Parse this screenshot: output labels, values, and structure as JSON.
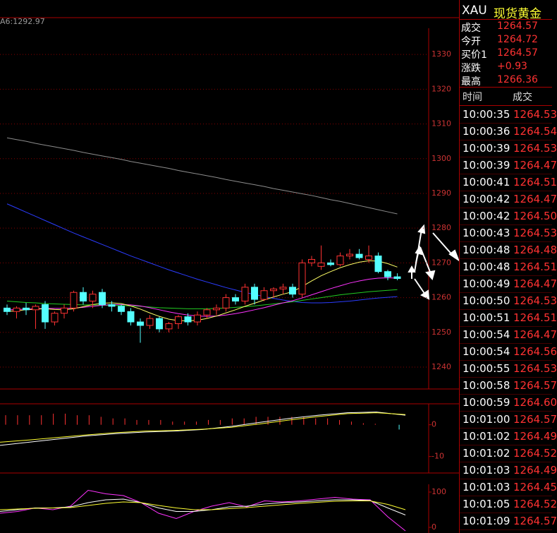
{
  "chart_data": [
    {
      "type": "candlestick",
      "annotation": "A6:1292.97",
      "ylim": [
        1233.7,
        1340.6
      ],
      "yticks": [
        1240,
        1250,
        1260,
        1270,
        1280,
        1290,
        1300,
        1310,
        1320,
        1330
      ],
      "grid": true,
      "up_color": "#ff3232",
      "down_color": "#54ffff",
      "open": [
        1257,
        1256,
        1257,
        1256.5,
        1258,
        1253,
        1255.5,
        1257,
        1261.5,
        1259,
        1261.5,
        1258,
        1257.5,
        1256,
        1253,
        1252,
        1254,
        1251,
        1252.5,
        1254.5,
        1253,
        1255,
        1256.5,
        1257,
        1260,
        1259,
        1263,
        1259.5,
        1262,
        1262.5,
        1263,
        1261,
        1270,
        1269,
        1270,
        1269.5,
        1272,
        1272.5,
        1271,
        1272,
        1267.5,
        1266
      ],
      "high": [
        1258,
        1257.5,
        1258.5,
        1258,
        1259,
        1256,
        1258,
        1262,
        1263,
        1262,
        1262.5,
        1259,
        1258,
        1257,
        1254,
        1255,
        1254.5,
        1253,
        1255,
        1255.5,
        1256,
        1257,
        1258,
        1261,
        1261,
        1264,
        1264,
        1263,
        1263,
        1264,
        1264,
        1271,
        1272,
        1275,
        1271,
        1273,
        1274,
        1274,
        1275,
        1273,
        1268,
        1267
      ],
      "low": [
        1255,
        1254,
        1255,
        1251,
        1251,
        1252,
        1254,
        1256,
        1258,
        1257,
        1257,
        1256,
        1255,
        1252,
        1247,
        1251,
        1250,
        1250,
        1251,
        1252,
        1252,
        1254,
        1255,
        1256,
        1258,
        1258,
        1258,
        1259,
        1260,
        1261,
        1260,
        1260,
        1269,
        1268,
        1269,
        1269,
        1271,
        1271,
        1270,
        1267,
        1265,
        1265
      ],
      "close": [
        1256,
        1257,
        1256.5,
        1257.5,
        1253,
        1255.5,
        1257,
        1261.5,
        1259,
        1261,
        1258,
        1257.5,
        1256,
        1253,
        1252,
        1254,
        1251,
        1252.5,
        1254.5,
        1253,
        1255,
        1256.5,
        1257,
        1260,
        1259,
        1263,
        1259.5,
        1262,
        1262.5,
        1263,
        1261,
        1270,
        1271,
        1270,
        1269.5,
        1272,
        1272.5,
        1271.5,
        1272,
        1267.5,
        1266,
        1265.5
      ],
      "lines": [
        {
          "color": "#8c8c8c",
          "values": [
            1306,
            1305.5,
            1305,
            1304.4,
            1303.9,
            1303.4,
            1302.9,
            1302.4,
            1301.8,
            1301.3,
            1300.8,
            1300.3,
            1299.8,
            1299.2,
            1298.7,
            1298.2,
            1297.7,
            1297.2,
            1296.6,
            1296.1,
            1295.6,
            1295.1,
            1294.6,
            1294,
            1293.5,
            1293,
            1292.5,
            1292,
            1291.4,
            1290.9,
            1290.4,
            1289.9,
            1289.4,
            1288.8,
            1288.2,
            1287.7,
            1287.1,
            1286.5,
            1285.9,
            1285.3,
            1284.7,
            1284.1
          ]
        },
        {
          "color": "#2b3cff",
          "values": [
            1287,
            1285.8,
            1284.6,
            1283.4,
            1282.2,
            1281,
            1279.8,
            1278.6,
            1277.5,
            1276.4,
            1275.3,
            1274.2,
            1273.1,
            1272,
            1271,
            1270,
            1269,
            1268,
            1267.1,
            1266.2,
            1265.3,
            1264.5,
            1263.7,
            1262.9,
            1262.2,
            1261.5,
            1260.9,
            1260.3,
            1259.8,
            1259.3,
            1258.9,
            1258.6,
            1258.5,
            1258.5,
            1258.6,
            1258.8,
            1259,
            1259.3,
            1259.6,
            1259.9,
            1260.1,
            1260.3
          ]
        },
        {
          "color": "#22cc22",
          "values": [
            1259,
            1258.8,
            1258.6,
            1258.5,
            1258.3,
            1258.2,
            1258.1,
            1258,
            1257.9,
            1257.9,
            1257.8,
            1257.8,
            1257.7,
            1257.6,
            1257.5,
            1257.3,
            1257.1,
            1257,
            1256.9,
            1256.8,
            1256.8,
            1256.8,
            1256.9,
            1257,
            1257.2,
            1257.4,
            1257.6,
            1257.9,
            1258.2,
            1258.5,
            1258.8,
            1259.2,
            1259.6,
            1260,
            1260.4,
            1260.8,
            1261.1,
            1261.4,
            1261.7,
            1261.9,
            1262.1,
            1262.3
          ]
        },
        {
          "color": "#ff33ff",
          "values": [
            1256.5,
            1256.6,
            1256.7,
            1256.8,
            1256.9,
            1256.9,
            1256.9,
            1257,
            1257.2,
            1257.5,
            1257.8,
            1258,
            1258,
            1257.9,
            1257.6,
            1257.1,
            1256.5,
            1255.9,
            1255.4,
            1255,
            1254.7,
            1254.6,
            1254.7,
            1255,
            1255.4,
            1255.9,
            1256.5,
            1257.1,
            1257.8,
            1258.5,
            1259.1,
            1259.9,
            1260.8,
            1261.7,
            1262.6,
            1263.4,
            1264.2,
            1264.8,
            1265.3,
            1265.6,
            1265.7,
            1265.6
          ]
        },
        {
          "color": "#ffff66",
          "values": [
            1256,
            1256.2,
            1256.5,
            1256.7,
            1256.8,
            1256.6,
            1256.5,
            1256.8,
            1257.4,
            1258,
            1258.4,
            1258.5,
            1258.3,
            1257.6,
            1256.7,
            1255.6,
            1254.6,
            1253.8,
            1253.4,
            1253.3,
            1253.5,
            1254,
            1254.7,
            1255.6,
            1256.5,
            1257.5,
            1258.4,
            1259.3,
            1260.2,
            1261,
            1261.7,
            1263.2,
            1264.8,
            1266.3,
            1267.5,
            1268.6,
            1269.5,
            1270.2,
            1270.6,
            1270.5,
            1269.8,
            1268.8
          ]
        }
      ]
    },
    {
      "type": "macd",
      "ylim": [
        -15.2,
        6.6
      ],
      "yticks": [
        -10,
        0
      ],
      "bar_color": "#ff3232",
      "bars": [
        3,
        3,
        3,
        3,
        3.5,
        3.5,
        3,
        3,
        2.5,
        2,
        2,
        1.5,
        1.5,
        1.5,
        1,
        1,
        1,
        1.5,
        1.5,
        2,
        2,
        2.5,
        2.5,
        2.5,
        2.5,
        2.5,
        2,
        2,
        1.5,
        1,
        0.5,
        0.3,
        0,
        -1.5
      ],
      "lines": [
        {
          "color": "#ffffff",
          "values": [
            -6.5,
            -5.5,
            -4.5,
            -3.5,
            -2.8,
            -2.3,
            -2,
            -1.5,
            -0.5,
            0.8,
            2,
            3,
            3.8,
            4,
            3
          ]
        },
        {
          "color": "#ffff33",
          "values": [
            -5.5,
            -4.8,
            -4,
            -3.2,
            -2.5,
            -2,
            -1.8,
            -1.4,
            -0.8,
            0.3,
            1.5,
            2.6,
            3.5,
            3.8,
            3.2
          ]
        }
      ]
    },
    {
      "type": "line",
      "ylim": [
        -16,
        154
      ],
      "yticks": [
        0,
        100
      ],
      "lines": [
        {
          "color": "#ff33ff",
          "values": [
            40,
            45,
            55,
            50,
            60,
            105,
            95,
            90,
            70,
            40,
            25,
            45,
            60,
            70,
            58,
            75,
            72,
            75,
            80,
            85,
            80,
            78,
            30,
            -10
          ]
        },
        {
          "color": "#ffffff",
          "values": [
            45,
            50,
            55,
            55,
            58,
            70,
            78,
            80,
            70,
            55,
            45,
            45,
            50,
            58,
            60,
            66,
            70,
            72,
            75,
            78,
            78,
            76,
            55,
            35
          ]
        },
        {
          "color": "#ffff33",
          "values": [
            50,
            52,
            54,
            55,
            56,
            62,
            68,
            72,
            70,
            62,
            55,
            50,
            50,
            53,
            56,
            60,
            64,
            68,
            71,
            74,
            75,
            75,
            65,
            50
          ]
        }
      ]
    }
  ],
  "quote": {
    "symbol": "XAU",
    "name": "现货黄金",
    "fields": [
      {
        "label": "成交",
        "value": "1264.57"
      },
      {
        "label": "今开",
        "value": "1264.72"
      },
      {
        "label": "买价1",
        "value": "1264.57"
      },
      {
        "label": "涨跌",
        "value": "+0.93"
      },
      {
        "label": "最高",
        "value": "1266.36"
      }
    ]
  },
  "ticks": {
    "headers": [
      "时间",
      "成交"
    ],
    "rows": [
      [
        "10:00:35",
        "1264.53"
      ],
      [
        "10:00:36",
        "1264.54"
      ],
      [
        "10:00:39",
        "1264.53"
      ],
      [
        "10:00:39",
        "1264.47"
      ],
      [
        "10:00:41",
        "1264.51"
      ],
      [
        "10:00:42",
        "1264.47"
      ],
      [
        "10:00:42",
        "1264.50"
      ],
      [
        "10:00:43",
        "1264.53"
      ],
      [
        "10:00:48",
        "1264.48"
      ],
      [
        "10:00:48",
        "1264.51"
      ],
      [
        "10:00:49",
        "1264.47"
      ],
      [
        "10:00:50",
        "1264.53"
      ],
      [
        "10:00:51",
        "1264.51"
      ],
      [
        "10:00:54",
        "1264.47"
      ],
      [
        "10:00:54",
        "1264.56"
      ],
      [
        "10:00:55",
        "1264.53"
      ],
      [
        "10:00:58",
        "1264.57"
      ],
      [
        "10:00:59",
        "1264.60"
      ],
      [
        "10:01:00",
        "1264.57"
      ],
      [
        "10:01:02",
        "1264.49"
      ],
      [
        "10:01:02",
        "1264.52"
      ],
      [
        "10:01:03",
        "1264.49"
      ],
      [
        "10:01:03",
        "1264.45"
      ],
      [
        "10:01:05",
        "1264.52"
      ],
      [
        "10:01:09",
        "1264.57"
      ]
    ]
  }
}
